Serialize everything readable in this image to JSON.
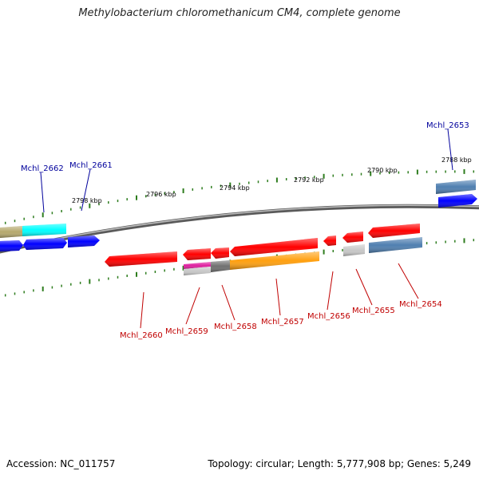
{
  "title": "Methylobacterium chloromethanicum CM4, complete genome",
  "footer": {
    "accession": "Accession: NC_011757",
    "topology": "Topology: circular; Length: 5,777,908 bp; Genes: 5,249"
  },
  "kbp_labels": [
    "2798 kbp",
    "2796 kbp",
    "2794 kbp",
    "2792 kbp",
    "2790 kbp",
    "2788 kbp"
  ],
  "top_labels": [
    "Mchl_2662",
    "Mchl_2661",
    "Mchl_2653"
  ],
  "bottom_labels": [
    "Mchl_2660",
    "Mchl_2659",
    "Mchl_2658",
    "Mchl_2657",
    "Mchl_2656",
    "Mchl_2655",
    "Mchl_2654"
  ],
  "colors": {
    "top_label": "#00009c",
    "bottom_label": "#c00000",
    "tick": "#2e7d1e",
    "red_gene": "#ff0000",
    "blue_gene": "#0000ff",
    "cyan_gene": "#00ffff",
    "olive_gene": "#b5a86c",
    "orange_gene": "#ffa010",
    "steel_gene": "#4f7fb0",
    "gray_gene": "#c8c8c8",
    "magenta_gene": "#e020a0",
    "dark_gray_gene": "#707070",
    "backbone": "#8a8a8a"
  }
}
